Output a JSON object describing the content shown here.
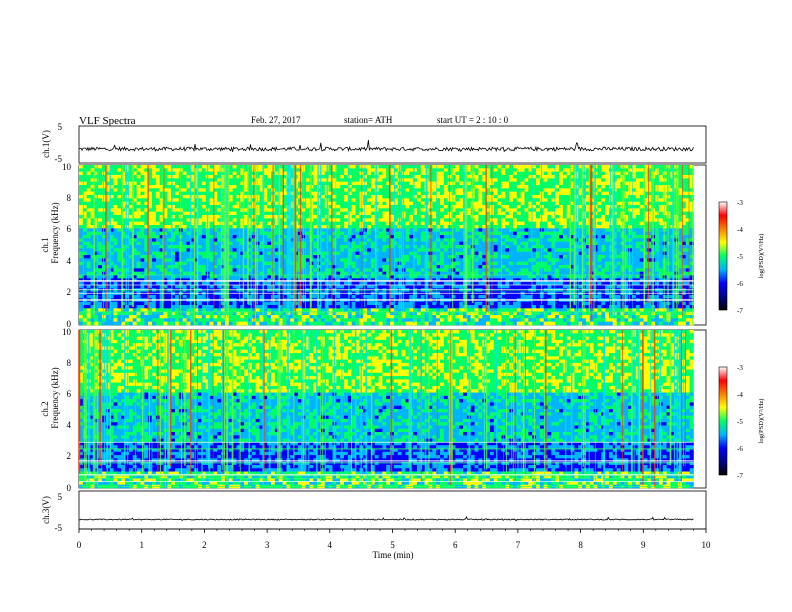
{
  "header": {
    "title": "VLF  Spectra",
    "date": "Feb. 27, 2017",
    "station": "station= ATH",
    "start": "start  UT  =   2  : 10 : 0"
  },
  "chart_data": [
    {
      "type": "line",
      "ylabel": "ch.1(V)",
      "yticks": [
        "5",
        "-5"
      ],
      "xlim": [
        0,
        10
      ],
      "ylim": [
        -5,
        5
      ],
      "baseline": -1.2,
      "noise_amplitude": 0.5,
      "x_end": 9.8
    },
    {
      "type": "heatmap",
      "ylabel_top": "ch.1",
      "ylabel_bottom": "Frequency (kHz)",
      "yticks": [
        "10",
        "8",
        "6",
        "4",
        "2",
        "0"
      ],
      "ylim": [
        0,
        10
      ],
      "xlim": [
        0,
        9.8
      ],
      "colorscale": [
        "#000000",
        "#00008b",
        "#0000ff",
        "#00b4ff",
        "#00ff66",
        "#ffff00",
        "#ff7f00",
        "#ff0000",
        "#ffffff"
      ],
      "colorbar": {
        "label": "log(PSD)(V²/Hz)",
        "ticks": [
          "-3",
          "-4",
          "-5",
          "-6",
          "-7"
        ],
        "range": [
          -7,
          -3
        ]
      }
    },
    {
      "type": "heatmap",
      "ylabel_top": "ch.2",
      "ylabel_bottom": "Frequency (kHz)",
      "yticks": [
        "10",
        "8",
        "6",
        "4",
        "2",
        "0"
      ],
      "ylim": [
        0,
        10
      ],
      "xlim": [
        0,
        9.8
      ],
      "colorscale": [
        "#000000",
        "#00008b",
        "#0000ff",
        "#00b4ff",
        "#00ff66",
        "#ffff00",
        "#ff7f00",
        "#ff0000",
        "#ffffff"
      ],
      "colorbar": {
        "label": "log(PSD)(V²/Hz)",
        "ticks": [
          "-3",
          "-4",
          "-5",
          "-6",
          "-7"
        ],
        "range": [
          -7,
          -3
        ]
      }
    },
    {
      "type": "line",
      "ylabel": "ch.3(V)",
      "yticks": [
        "5",
        "-5"
      ],
      "xlim": [
        0,
        10
      ],
      "ylim": [
        -5,
        5
      ],
      "baseline": -2.5,
      "noise_amplitude": 0.15,
      "x_end": 9.8
    }
  ],
  "xaxis": {
    "label": "Time  (min)",
    "ticks": [
      "0",
      "1",
      "2",
      "3",
      "4",
      "5",
      "6",
      "7",
      "8",
      "9",
      "10"
    ],
    "range": [
      0,
      10
    ]
  }
}
